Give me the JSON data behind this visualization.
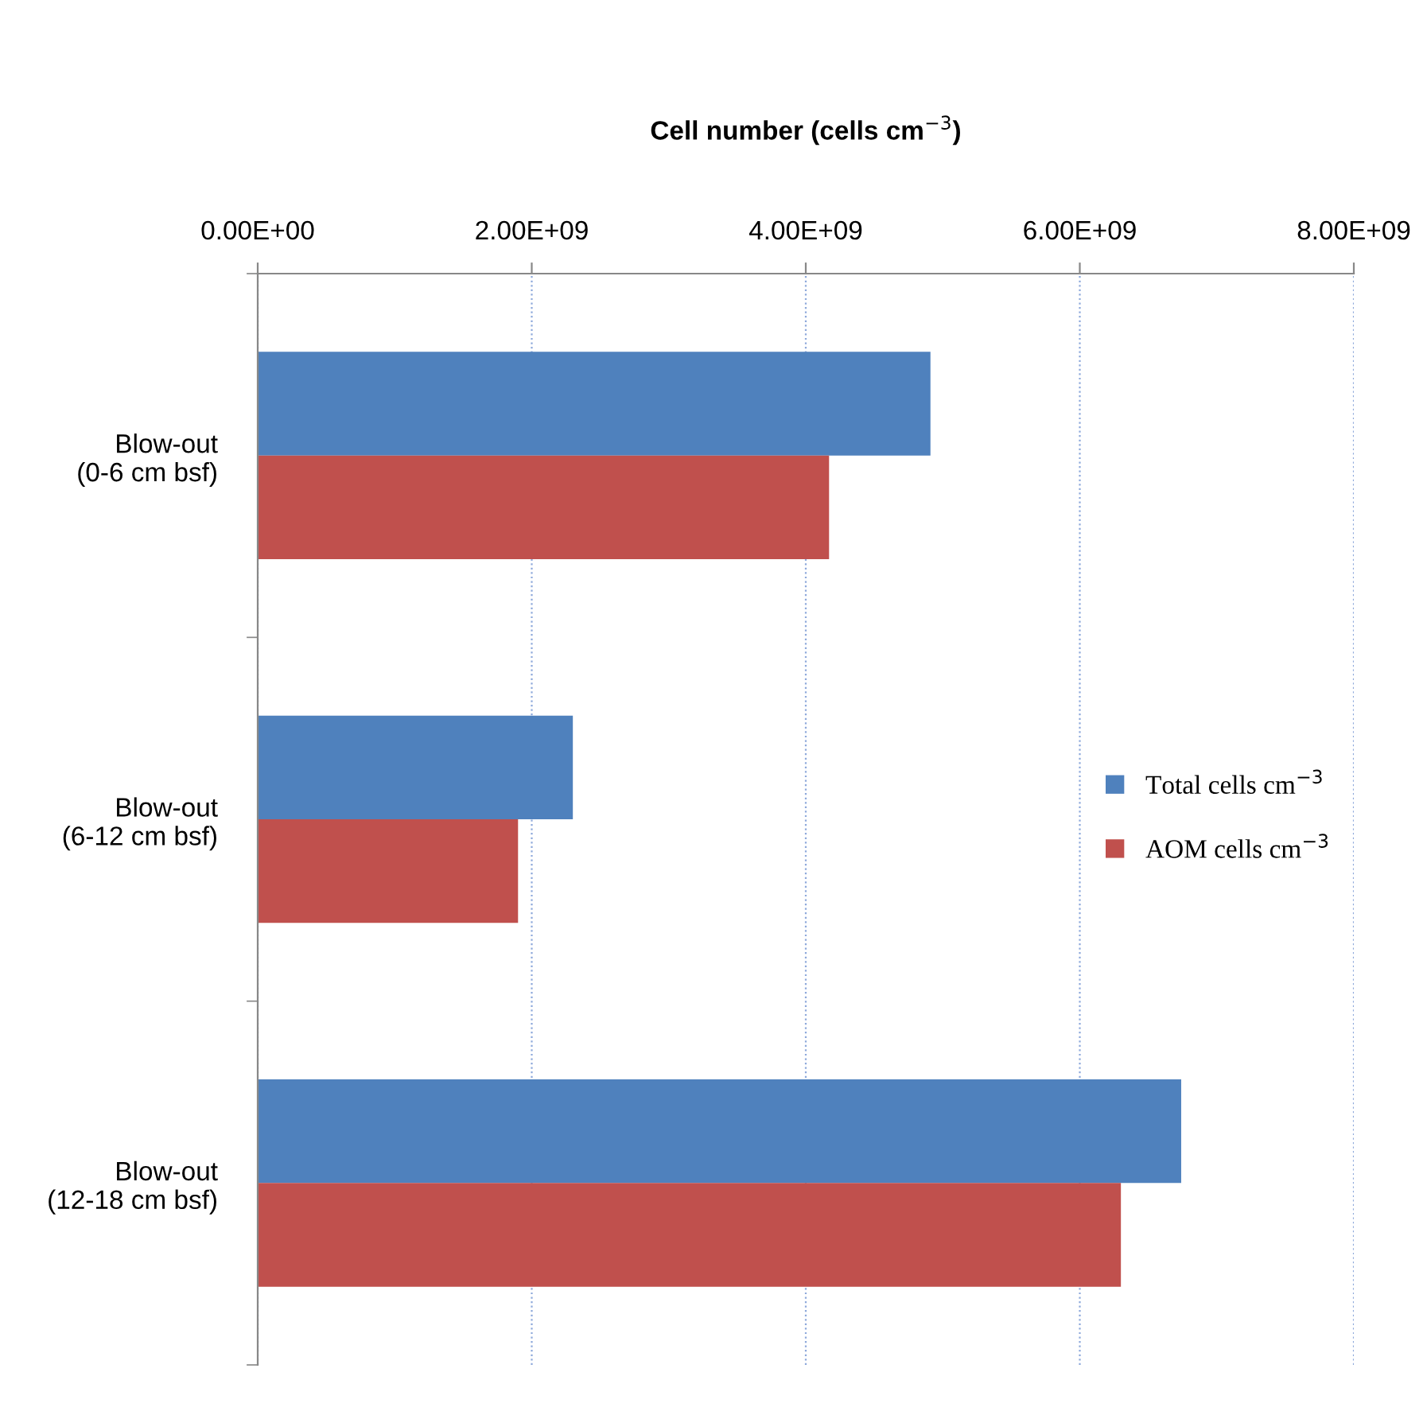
{
  "chart_data": {
    "type": "bar",
    "orientation": "horizontal",
    "title": "Cell number (cells cm$^{−3}$)",
    "categories": [
      "Blow-out\n(0-6 cm bsf)",
      "Blow-out\n(6-12 cm bsf)",
      "Blow-out\n(12-18 cm bsf)"
    ],
    "series": [
      {
        "name": "Total cells cm$^{−3}$",
        "color": "#4f81bd",
        "values": [
          4910000000.0,
          2300000000.0,
          6740000000.0
        ]
      },
      {
        "name": "AOM cells cm$^{−3}$",
        "color": "#c0504d",
        "values": [
          4170000000.0,
          1900000000.0,
          6300000000.0
        ]
      }
    ],
    "xlim": [
      0,
      8000000000.0
    ],
    "xticks": [
      {
        "value": 0,
        "label": "0.00E+00"
      },
      {
        "value": 2000000000.0,
        "label": "2.00E+09"
      },
      {
        "value": 4000000000.0,
        "label": "4.00E+09"
      },
      {
        "value": 6000000000.0,
        "label": "6.00E+09"
      },
      {
        "value": 8000000000.0,
        "label": "8.00E+09"
      }
    ],
    "grid": "x",
    "legend": "right"
  }
}
